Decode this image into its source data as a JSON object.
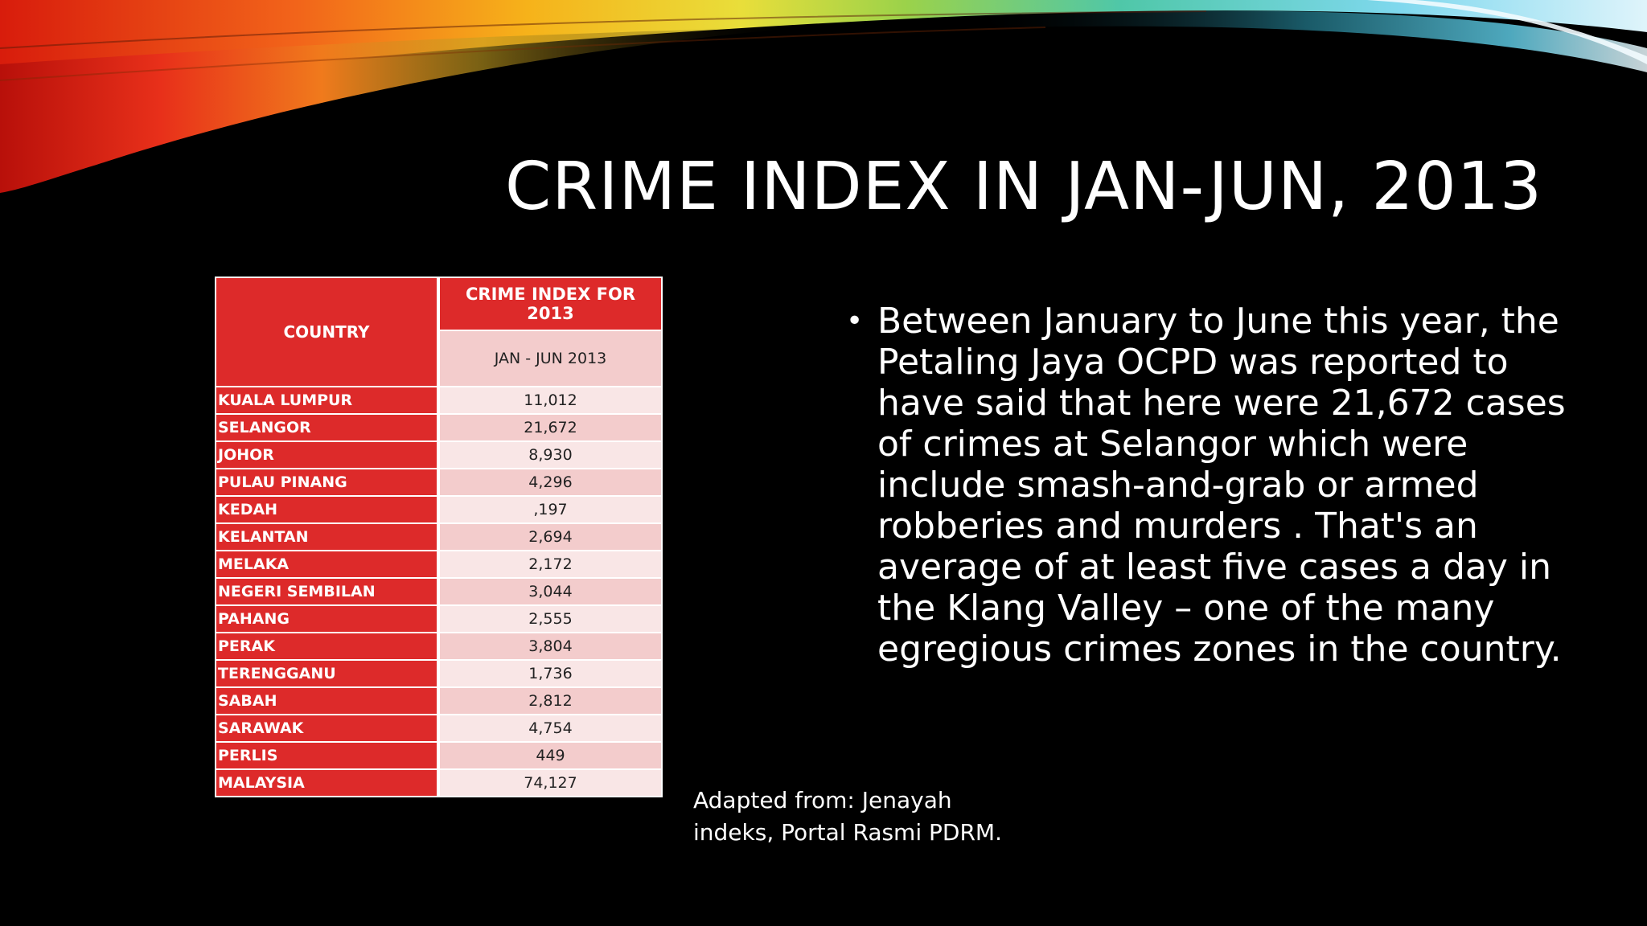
{
  "slide": {
    "title": "CRIME INDEX IN JAN-JUN, 2013"
  },
  "table": {
    "header_country": "COUNTRY",
    "header_index": "CRIME INDEX FOR 2013",
    "header_period": "JAN - JUN 2013",
    "rows": [
      {
        "state": "KUALA LUMPUR",
        "value": "11,012"
      },
      {
        "state": "SELANGOR",
        "value": "21,672"
      },
      {
        "state": "JOHOR",
        "value": "8,930"
      },
      {
        "state": "PULAU PINANG",
        "value": "4,296"
      },
      {
        "state": "KEDAH",
        "value": ",197"
      },
      {
        "state": "KELANTAN",
        "value": "2,694"
      },
      {
        "state": "MELAKA",
        "value": "2,172"
      },
      {
        "state": "NEGERI SEMBILAN",
        "value": "3,044"
      },
      {
        "state": "PAHANG",
        "value": "2,555"
      },
      {
        "state": "PERAK",
        "value": "3,804"
      },
      {
        "state": "TERENGGANU",
        "value": "1,736"
      },
      {
        "state": "SABAH",
        "value": "2,812"
      },
      {
        "state": "SARAWAK",
        "value": "4,754"
      },
      {
        "state": "PERLIS",
        "value": "449"
      },
      {
        "state": "MALAYSIA",
        "value": "74,127"
      }
    ]
  },
  "bullet": {
    "marker": "•",
    "text": "Between January to June this year, the Petaling Jaya OCPD was reported to have said that here were  21,672 cases of crimes at Selangor which were include smash-and-grab or armed robberies and murders . That's an average of at least five cases a day in the Klang Valley – one of the many egregious crimes zones in the country."
  },
  "source": {
    "text": "Adapted from: Jenayah indeks, Portal Rasmi PDRM."
  },
  "colors": {
    "background": "#000000",
    "table_red": "#dd2a2a",
    "table_pink_dark": "#f3cccc",
    "table_pink_light": "#f9e6e6",
    "text": "#ffffff"
  }
}
